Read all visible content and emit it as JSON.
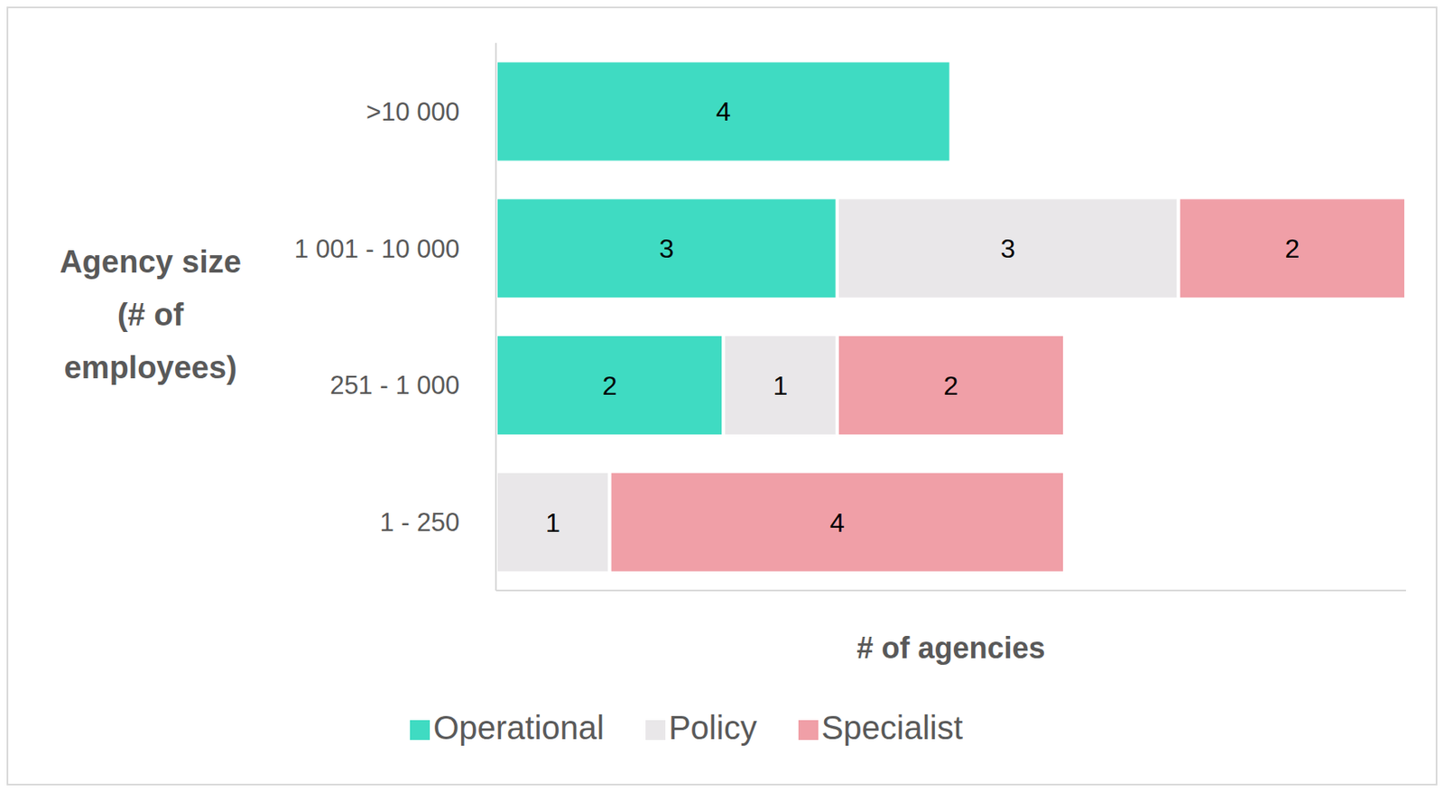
{
  "chart_data": {
    "type": "bar",
    "orientation": "horizontal",
    "stacked": true,
    "data_labels": true,
    "tick_labels": "y",
    "grid": false,
    "legend": "bottom",
    "x_label": "# of agencies",
    "y_label": "Agency size (# of employees)",
    "categories": [
      ">10 000",
      "1 001 - 10 000",
      "251 - 1 000",
      "1 - 250"
    ],
    "xlim": [
      0,
      8
    ],
    "series": [
      {
        "name": "Operational",
        "color": "#3fdbc2",
        "values": [
          4,
          3,
          2,
          null
        ]
      },
      {
        "name": "Policy",
        "color": "#e9e7e9",
        "values": [
          null,
          3,
          1,
          1
        ]
      },
      {
        "name": "Specialist",
        "color": "#f09fa7",
        "values": [
          null,
          2,
          2,
          4
        ]
      }
    ]
  }
}
